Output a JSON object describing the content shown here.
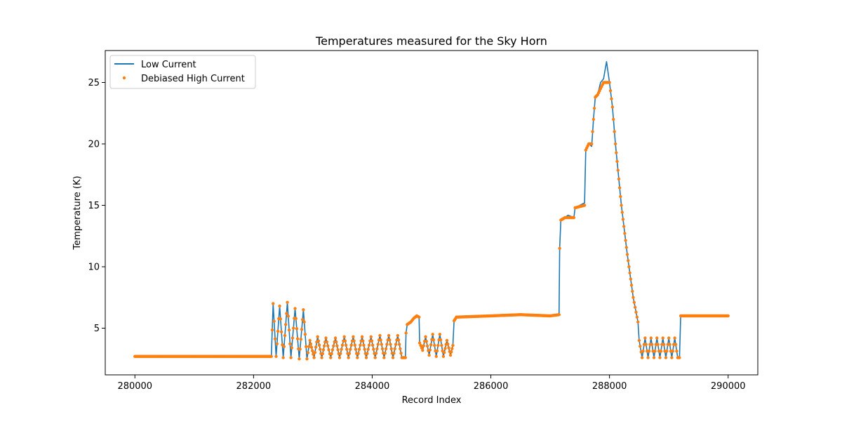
{
  "chart_data": {
    "type": "line",
    "title": "Temperatures measured for the Sky Horn",
    "xlabel": "Record Index",
    "ylabel": "Temperature (K)",
    "xlim": [
      279500,
      290500
    ],
    "ylim": [
      1.2,
      27.6
    ],
    "x_ticks": [
      280000,
      282000,
      284000,
      286000,
      288000,
      290000
    ],
    "y_ticks": [
      5,
      10,
      15,
      20,
      25
    ],
    "grid": false,
    "legend_position": "upper-left",
    "colors": {
      "low": "#1f77b4",
      "high": "#ff7f0e"
    },
    "series": [
      {
        "name": "Low Current",
        "style": "line",
        "points": [
          [
            280000,
            2.7
          ],
          [
            282300,
            2.7
          ],
          [
            282330,
            7.0
          ],
          [
            282380,
            2.7
          ],
          [
            282440,
            6.8
          ],
          [
            282500,
            2.6
          ],
          [
            282570,
            7.1
          ],
          [
            282630,
            2.6
          ],
          [
            282700,
            6.6
          ],
          [
            282770,
            2.5
          ],
          [
            282840,
            6.5
          ],
          [
            282900,
            2.5
          ],
          [
            282950,
            4.0
          ],
          [
            283020,
            2.6
          ],
          [
            283080,
            4.3
          ],
          [
            283150,
            2.6
          ],
          [
            283220,
            4.2
          ],
          [
            283300,
            2.6
          ],
          [
            283380,
            4.2
          ],
          [
            283450,
            2.6
          ],
          [
            283530,
            4.3
          ],
          [
            283600,
            2.6
          ],
          [
            283680,
            4.3
          ],
          [
            283750,
            2.6
          ],
          [
            283830,
            4.3
          ],
          [
            283900,
            2.6
          ],
          [
            283980,
            4.3
          ],
          [
            284050,
            2.6
          ],
          [
            284130,
            4.4
          ],
          [
            284200,
            2.6
          ],
          [
            284280,
            4.4
          ],
          [
            284350,
            2.6
          ],
          [
            284430,
            4.4
          ],
          [
            284500,
            2.6
          ],
          [
            284560,
            2.6
          ],
          [
            284570,
            4.6
          ],
          [
            284590,
            5.3
          ],
          [
            284650,
            5.5
          ],
          [
            284700,
            5.8
          ],
          [
            284750,
            6.0
          ],
          [
            284790,
            5.9
          ],
          [
            284800,
            3.8
          ],
          [
            284850,
            3.2
          ],
          [
            284900,
            4.3
          ],
          [
            284960,
            2.8
          ],
          [
            285020,
            4.5
          ],
          [
            285080,
            2.7
          ],
          [
            285140,
            4.5
          ],
          [
            285200,
            2.7
          ],
          [
            285260,
            4.0
          ],
          [
            285320,
            2.8
          ],
          [
            285360,
            3.6
          ],
          [
            285380,
            5.6
          ],
          [
            285420,
            5.9
          ],
          [
            286000,
            6.0
          ],
          [
            286500,
            6.1
          ],
          [
            287000,
            6.0
          ],
          [
            287150,
            6.1
          ],
          [
            287160,
            11.5
          ],
          [
            287180,
            13.8
          ],
          [
            287250,
            14.0
          ],
          [
            287300,
            14.2
          ],
          [
            287400,
            14.0
          ],
          [
            287420,
            14.8
          ],
          [
            287500,
            15.0
          ],
          [
            287580,
            15.2
          ],
          [
            287600,
            19.5
          ],
          [
            287650,
            20.0
          ],
          [
            287700,
            19.8
          ],
          [
            287730,
            22.0
          ],
          [
            287760,
            23.8
          ],
          [
            287800,
            24.0
          ],
          [
            287850,
            25.0
          ],
          [
            287900,
            25.3
          ],
          [
            287950,
            26.7
          ],
          [
            288000,
            25.0
          ],
          [
            288050,
            23.0
          ],
          [
            288100,
            20.0
          ],
          [
            288200,
            15.0
          ],
          [
            288300,
            11.0
          ],
          [
            288400,
            7.5
          ],
          [
            288480,
            5.5
          ],
          [
            288500,
            4.0
          ],
          [
            288550,
            2.6
          ],
          [
            288600,
            4.2
          ],
          [
            288650,
            2.6
          ],
          [
            288700,
            4.2
          ],
          [
            288750,
            2.6
          ],
          [
            288800,
            4.2
          ],
          [
            288850,
            2.6
          ],
          [
            288900,
            4.2
          ],
          [
            288950,
            2.6
          ],
          [
            289000,
            4.2
          ],
          [
            289050,
            2.6
          ],
          [
            289100,
            4.2
          ],
          [
            289150,
            2.6
          ],
          [
            289180,
            2.6
          ],
          [
            289200,
            6.0
          ],
          [
            289500,
            6.0
          ],
          [
            289800,
            6.0
          ],
          [
            290000,
            6.0
          ]
        ]
      },
      {
        "name": "Debiased High Current",
        "style": "scatter",
        "point_step": 15,
        "points": [
          [
            280000,
            2.7
          ],
          [
            282300,
            2.7
          ],
          [
            282330,
            7.0
          ],
          [
            282380,
            2.7
          ],
          [
            282440,
            6.8
          ],
          [
            282500,
            2.6
          ],
          [
            282570,
            7.1
          ],
          [
            282630,
            2.6
          ],
          [
            282700,
            6.6
          ],
          [
            282770,
            2.5
          ],
          [
            282840,
            6.5
          ],
          [
            282900,
            2.5
          ],
          [
            282950,
            4.0
          ],
          [
            283020,
            2.6
          ],
          [
            283080,
            4.3
          ],
          [
            283150,
            2.6
          ],
          [
            283220,
            4.2
          ],
          [
            283300,
            2.6
          ],
          [
            283380,
            4.2
          ],
          [
            283450,
            2.6
          ],
          [
            283530,
            4.3
          ],
          [
            283600,
            2.6
          ],
          [
            283680,
            4.3
          ],
          [
            283750,
            2.6
          ],
          [
            283830,
            4.3
          ],
          [
            283900,
            2.6
          ],
          [
            283980,
            4.3
          ],
          [
            284050,
            2.6
          ],
          [
            284130,
            4.4
          ],
          [
            284200,
            2.6
          ],
          [
            284280,
            4.4
          ],
          [
            284350,
            2.6
          ],
          [
            284430,
            4.4
          ],
          [
            284500,
            2.6
          ],
          [
            284560,
            2.6
          ],
          [
            284570,
            4.6
          ],
          [
            284590,
            5.3
          ],
          [
            284650,
            5.5
          ],
          [
            284700,
            5.8
          ],
          [
            284750,
            6.0
          ],
          [
            284790,
            5.9
          ],
          [
            284800,
            3.8
          ],
          [
            284850,
            3.2
          ],
          [
            284900,
            4.3
          ],
          [
            284960,
            2.8
          ],
          [
            285020,
            4.5
          ],
          [
            285080,
            2.7
          ],
          [
            285140,
            4.5
          ],
          [
            285200,
            2.7
          ],
          [
            285260,
            4.0
          ],
          [
            285320,
            2.8
          ],
          [
            285360,
            3.6
          ],
          [
            285380,
            5.6
          ],
          [
            285420,
            5.9
          ],
          [
            286000,
            6.0
          ],
          [
            286500,
            6.1
          ],
          [
            287000,
            6.0
          ],
          [
            287150,
            6.1
          ],
          [
            287160,
            11.5
          ],
          [
            287180,
            13.8
          ],
          [
            287250,
            14.0
          ],
          [
            287300,
            14.0
          ],
          [
            287400,
            14.0
          ],
          [
            287420,
            14.8
          ],
          [
            287500,
            14.9
          ],
          [
            287580,
            15.0
          ],
          [
            287600,
            19.5
          ],
          [
            287650,
            20.0
          ],
          [
            287700,
            20.0
          ],
          [
            287730,
            22.0
          ],
          [
            287760,
            23.8
          ],
          [
            287800,
            24.0
          ],
          [
            287850,
            24.5
          ],
          [
            287900,
            25.0
          ],
          [
            287950,
            25.0
          ],
          [
            288000,
            25.0
          ],
          [
            288050,
            23.0
          ],
          [
            288100,
            20.0
          ],
          [
            288200,
            15.0
          ],
          [
            288300,
            11.0
          ],
          [
            288400,
            7.5
          ],
          [
            288480,
            5.5
          ],
          [
            288500,
            4.0
          ],
          [
            288550,
            2.6
          ],
          [
            288600,
            4.2
          ],
          [
            288650,
            2.6
          ],
          [
            288700,
            4.2
          ],
          [
            288750,
            2.6
          ],
          [
            288800,
            4.2
          ],
          [
            288850,
            2.6
          ],
          [
            288900,
            4.2
          ],
          [
            288950,
            2.6
          ],
          [
            289000,
            4.2
          ],
          [
            289050,
            2.6
          ],
          [
            289100,
            4.2
          ],
          [
            289150,
            2.6
          ],
          [
            289180,
            2.6
          ],
          [
            289200,
            6.0
          ],
          [
            289500,
            6.0
          ],
          [
            289800,
            6.0
          ],
          [
            290000,
            6.0
          ]
        ]
      }
    ]
  }
}
